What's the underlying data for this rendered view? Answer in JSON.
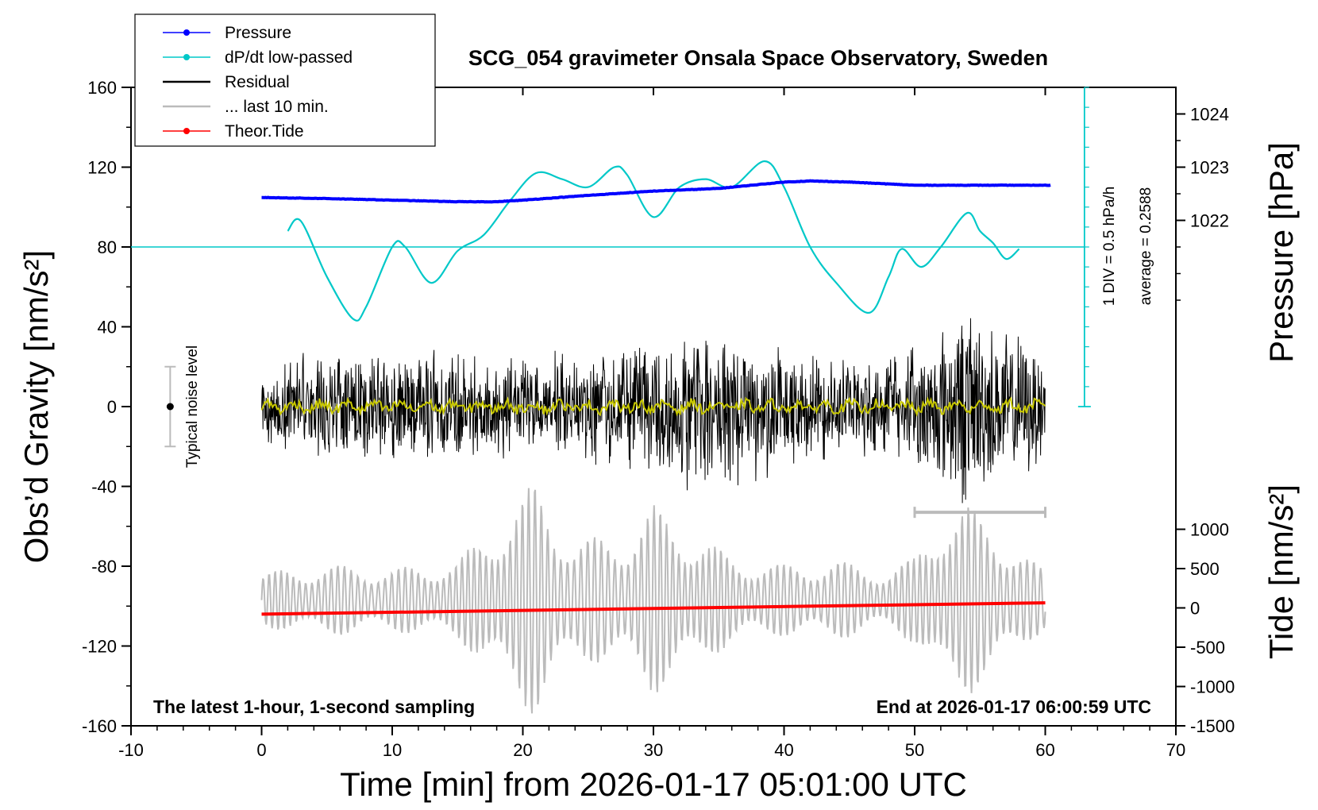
{
  "chart_data": {
    "type": "line",
    "title": "SCG_054 gravimeter Onsala Space Observatory, Sweden",
    "xlabel": "Time [min] from 2026-01-17 05:01:00 UTC",
    "ylabel": "Obs’d Gravity [nm/s²]",
    "ylabel_right_top": "Pressure [hPa]",
    "ylabel_right_bottom": "Tide [nm/s²]",
    "xlim": [
      -10,
      70
    ],
    "ylim": [
      -160,
      160
    ],
    "x_ticks": [
      "-10",
      "0",
      "10",
      "20",
      "30",
      "40",
      "50",
      "60",
      "70"
    ],
    "y_ticks": [
      "160",
      "120",
      "80",
      "40",
      "0",
      "-40",
      "-80",
      "-120",
      "-160"
    ],
    "pressure_axis": {
      "range": [
        1020.0,
        1024.5
      ],
      "ticks": [
        "1024",
        "1023",
        "1022"
      ]
    },
    "tide_axis": {
      "range": [
        -1500,
        1500
      ],
      "ticks": [
        "1000",
        "500",
        "0",
        "-500",
        "-1000",
        "-1500"
      ]
    },
    "legend": [
      {
        "label": "Pressure",
        "color": "#0000ff",
        "marker": true
      },
      {
        "label": "dP/dt low-passed",
        "color": "#00c8c8",
        "marker": true
      },
      {
        "label": "Residual",
        "color": "#000000",
        "marker": false
      },
      {
        "label": "... last 10 min.",
        "color": "#bbbbbb",
        "marker": false
      },
      {
        "label": "Theor.Tide",
        "color": "#ff0000",
        "marker": true
      }
    ],
    "annotations": {
      "left_note": "The latest 1-hour, 1-second sampling",
      "right_note": "End at 2026-01-17 06:00:59 UTC",
      "noise_label": "Typical noise level",
      "dpdt_scale": "1 DIV = 0.5 hPa/h",
      "dpdt_average": "average = 0.2588"
    },
    "series": [
      {
        "name": "Pressure",
        "axis": "pressure_hPa",
        "color": "#0000ff",
        "x": [
          0,
          5,
          10,
          15,
          18,
          20,
          25,
          30,
          35,
          40,
          42,
          45,
          50,
          55,
          60.5
        ],
        "y": [
          1022.43,
          1022.41,
          1022.38,
          1022.35,
          1022.35,
          1022.38,
          1022.47,
          1022.55,
          1022.6,
          1022.72,
          1022.74,
          1022.72,
          1022.66,
          1022.66,
          1022.66
        ]
      },
      {
        "name": "dP/dt low-passed",
        "axis": "gravity",
        "color": "#00c8c8",
        "x": [
          2,
          3,
          5,
          7,
          8,
          10,
          11,
          13,
          15,
          17,
          19,
          21,
          23,
          25,
          27,
          28,
          30,
          32,
          34,
          36,
          38.5,
          40,
          42,
          44,
          46.5,
          48,
          49,
          50.5,
          52,
          54,
          55,
          56,
          57,
          58
        ],
        "y": [
          88,
          93,
          65,
          44,
          50,
          80,
          80,
          62,
          78,
          86,
          103,
          117,
          114,
          110,
          120,
          116,
          95,
          110,
          114,
          110,
          123,
          110,
          80,
          62,
          47,
          65,
          79,
          70,
          80,
          97,
          88,
          82,
          74,
          79
        ]
      },
      {
        "name": "Residual",
        "axis": "gravity",
        "color": "#000000",
        "x_range": [
          0,
          60
        ],
        "amplitude_envelope_x": [
          0,
          5,
          10,
          15,
          20,
          25,
          30,
          33,
          36,
          38,
          40,
          45,
          50,
          52,
          54,
          56,
          58,
          60
        ],
        "amplitude_envelope_y": [
          15,
          22,
          20,
          22,
          18,
          20,
          26,
          30,
          28,
          30,
          20,
          18,
          22,
          30,
          38,
          30,
          26,
          24
        ]
      },
      {
        "name": "Residual smoothed",
        "axis": "gravity",
        "color": "#c8c800",
        "x_range": [
          0,
          60
        ],
        "amplitude_approx": 3
      },
      {
        "name": "... last 10 min.",
        "axis": "gravity",
        "color": "#bbbbbb",
        "x_range": [
          0,
          60
        ],
        "center": -97,
        "amplitude_envelope_x": [
          0,
          5,
          10,
          15,
          18,
          21,
          24,
          28,
          30,
          33,
          36,
          40,
          44,
          48,
          50,
          52,
          54,
          56,
          58,
          60
        ],
        "amplitude_envelope_y": [
          14,
          18,
          16,
          20,
          40,
          60,
          30,
          35,
          48,
          35,
          22,
          18,
          20,
          15,
          22,
          45,
          48,
          40,
          25,
          15
        ]
      },
      {
        "name": "Theor.Tide",
        "axis": "tide_nm_s2",
        "color": "#ff0000",
        "x": [
          0,
          60
        ],
        "y": [
          -80,
          65
        ]
      }
    ],
    "gravity_zero_line_y": 80,
    "last10_bracket_x": [
      50,
      60
    ],
    "noise_bar": {
      "x": -7,
      "y_center": 0,
      "half_height": 20
    }
  }
}
